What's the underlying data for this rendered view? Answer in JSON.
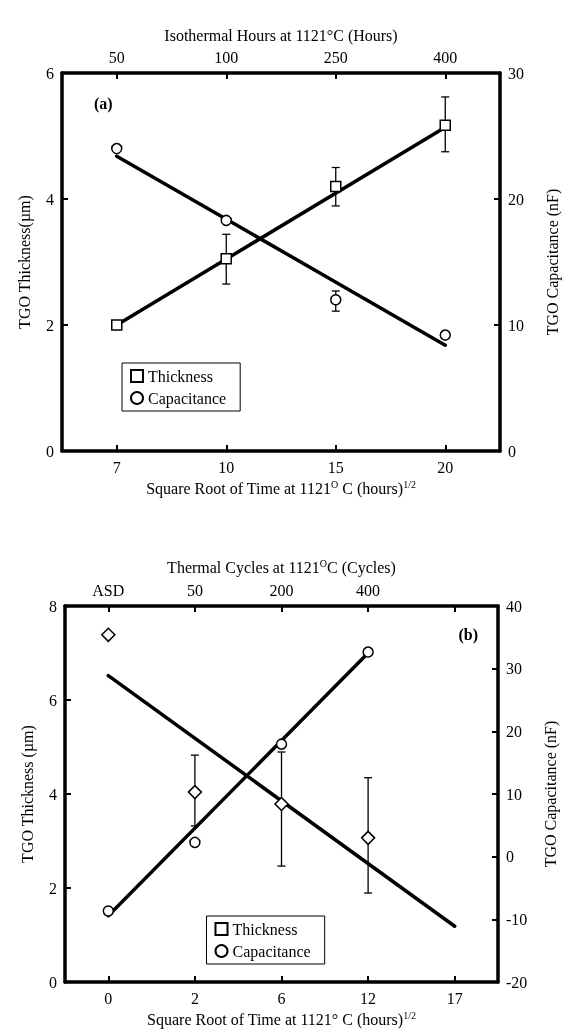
{
  "chart_data": [
    {
      "type": "scatter",
      "xlabel": "Square Root of Time at 1121$^{O}$ C (hours)$^{1/2}$",
      "x2label": "Isothermal Hours at 1121°C (Hours)",
      "ylabel": "TGO Thickness(µm)",
      "y2label": "TGO Capacitance (nF)",
      "annotations": [
        "(a)",
        {
          "text": "50",
          "x": "7"
        },
        {
          "text": "100",
          "x": "10"
        },
        {
          "text": "250",
          "x": "15"
        },
        {
          "text": "400",
          "x": "20"
        }
      ],
      "categories": [
        "7",
        "10",
        "15",
        "20"
      ],
      "ylim": [
        0,
        6
      ],
      "yticks": [
        0,
        2,
        4,
        6
      ],
      "y2lim": [
        0,
        30
      ],
      "y2ticks": [
        0,
        10,
        20,
        30
      ],
      "legend": "bottom left",
      "series": [
        {
          "name": "Thickness",
          "marker": "square",
          "color": "#000000",
          "values": [
            2.0,
            3.05,
            4.2,
            5.17
          ],
          "errors": [
            null,
            [
              2.65,
              3.44
            ],
            [
              3.89,
              4.5
            ],
            [
              4.75,
              5.62
            ]
          ]
        },
        {
          "name": "Capacitance",
          "marker": "circle",
          "axis": "y2",
          "color": "#000000",
          "values": [
            24.0,
            18.3,
            12.0,
            9.2
          ],
          "errors": [
            null,
            null,
            [
              11.1,
              12.7
            ],
            null
          ]
        },
        {
          "type": "line",
          "marker": "none",
          "color": "#000000",
          "x": [
            "7",
            "20"
          ],
          "values": [
            2.0,
            5.14
          ]
        },
        {
          "type": "line",
          "marker": "none",
          "axis": "y2",
          "color": "#000000",
          "x": [
            "7",
            "20"
          ],
          "values": [
            23.4,
            8.4
          ]
        }
      ]
    },
    {
      "type": "scatter",
      "xlabel": "Square Root of Time at 1121° C (hours)$^{1/2}$",
      "x2label": "Thermal Cycles at 1121$^{O}$C (Cycles)",
      "ylabel": "TGO Thickness (µm)",
      "y2label": "TGO Capacitance (nF)",
      "annotations": [
        "(b)",
        {
          "text": "ASD",
          "x": "0"
        },
        {
          "text": "50",
          "x": "2"
        },
        {
          "text": "200",
          "x": "6"
        },
        {
          "text": "400",
          "x": "12"
        }
      ],
      "categories": [
        "0",
        "2",
        "6",
        "12",
        "17"
      ],
      "ylim": [
        0,
        8
      ],
      "yticks": [
        0,
        2,
        4,
        6,
        8
      ],
      "y2lim": [
        -20,
        40
      ],
      "y2ticks": [
        -20,
        -10,
        0,
        10,
        20,
        30,
        40
      ],
      "legend": "bottom",
      "series": [
        {
          "name": "Thickness",
          "marker": "square",
          "color": "#000000",
          "values": [
            null,
            null,
            null,
            null,
            null
          ]
        },
        {
          "name": "Capacitance",
          "marker": "circle",
          "color": "#000000",
          "values": [
            1.51,
            2.97,
            5.06,
            7.02,
            null
          ]
        },
        {
          "marker": "diamond",
          "axis": "y2",
          "color": "#000000",
          "values": [
            35.4,
            10.3,
            8.4,
            3.0,
            null
          ],
          "errors": [
            null,
            [
              4.9,
              16.2
            ],
            [
              -1.5,
              16.7
            ],
            [
              -5.8,
              12.6
            ],
            null
          ]
        },
        {
          "type": "line",
          "marker": "none",
          "color": "#000000",
          "x": [
            "0",
            "12"
          ],
          "values": [
            1.41,
            7.0
          ]
        },
        {
          "type": "line",
          "marker": "none",
          "axis": "y2",
          "color": "#000000",
          "x": [
            "0",
            "17"
          ],
          "values": [
            28.9,
            -11.1
          ]
        }
      ]
    }
  ]
}
